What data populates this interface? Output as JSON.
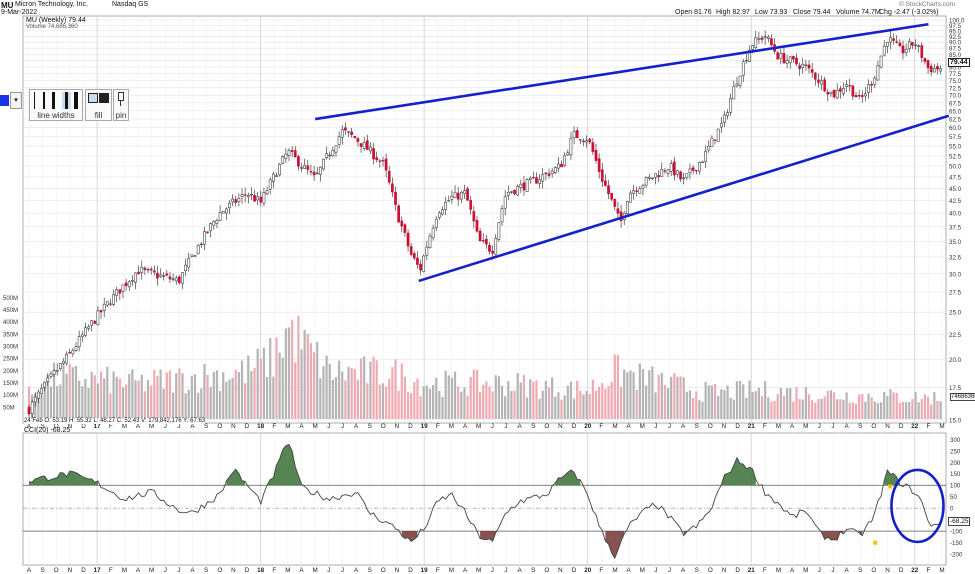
{
  "header": {
    "symbol": "MU",
    "company": "Micron Technology, Inc.",
    "exchange": "Nasdaq GS",
    "date": "9-Mar-2022",
    "open": "Open 81.76",
    "high": "High 82.97",
    "low": "Low 73.93",
    "close": "Close 79.44",
    "volume": "Volume 74.7M",
    "change": "Chg -2.47 (-3.02%)",
    "watermark": "© StockCharts.com",
    "legend_price": "MU (Weekly) 79.44",
    "legend_volume": "Volume 74,686,360",
    "volume_bar_readout": "24 Feb  O: 53.19  H: 55.32  L: 48.27  C: 52.43  V: 179,842,176  Y: 67.63",
    "cci_legend": "CCI(20) -68.25",
    "last_price_label": "79.44",
    "last_volume_label": "74686360",
    "last_cci_label": "-68.25"
  },
  "toolbar": {
    "line_widths_label": "line widths",
    "fill_label": "fill",
    "pin_label": "pin",
    "drop_arrow": "▾"
  },
  "chart_data": [
    {
      "type": "candlestick",
      "title": "MU (Weekly) 79.44",
      "scale": "log",
      "ylim": [
        15.5,
        100
      ],
      "y_ticks": [
        "100.0",
        "97.5",
        "95.0",
        "92.5",
        "90.0",
        "87.5",
        "85.0",
        "82.5",
        "80.0",
        "77.5",
        "75.0",
        "72.5",
        "70.0",
        "67.5",
        "65.0",
        "62.5",
        "60.0",
        "57.5",
        "55.0",
        "52.5",
        "50.0",
        "47.5",
        "45.0",
        "42.5",
        "40.0",
        "37.5",
        "35.0",
        "32.5",
        "30.0",
        "27.5",
        "25.0",
        "22.5",
        "20.0",
        "17.5",
        "15.0"
      ],
      "x_month_labels": [
        "A",
        "S",
        "O",
        "N",
        "D",
        "17",
        "F",
        "M",
        "A",
        "M",
        "J",
        "J",
        "A",
        "S",
        "O",
        "N",
        "D",
        "18",
        "F",
        "M",
        "A",
        "M",
        "J",
        "J",
        "A",
        "S",
        "O",
        "N",
        "D",
        "19",
        "F",
        "M",
        "A",
        "M",
        "J",
        "J",
        "A",
        "S",
        "O",
        "N",
        "D",
        "20",
        "F",
        "M",
        "A",
        "M",
        "J",
        "J",
        "A",
        "S",
        "O",
        "N",
        "D",
        "21",
        "F",
        "M",
        "A",
        "M",
        "J",
        "J",
        "A",
        "S",
        "O",
        "N",
        "D",
        "22",
        "F",
        "M"
      ],
      "close_anchors": [
        {
          "month": 0,
          "close": 15.8
        },
        {
          "month": 3,
          "close": 20.5
        },
        {
          "month": 5,
          "close": 24.5
        },
        {
          "month": 8,
          "close": 30.5
        },
        {
          "month": 11,
          "close": 29.0
        },
        {
          "month": 14,
          "close": 40.0
        },
        {
          "month": 16,
          "close": 44.0
        },
        {
          "month": 17,
          "close": 42.0
        },
        {
          "month": 19,
          "close": 53.5
        },
        {
          "month": 21,
          "close": 47.0
        },
        {
          "month": 23,
          "close": 59.0
        },
        {
          "month": 24,
          "close": 57.0
        },
        {
          "month": 26,
          "close": 50.5
        },
        {
          "month": 27,
          "close": 40.0
        },
        {
          "month": 28,
          "close": 33.0
        },
        {
          "month": 28.7,
          "close": 30.5
        },
        {
          "month": 30,
          "close": 40.5
        },
        {
          "month": 31,
          "close": 43.0
        },
        {
          "month": 32,
          "close": 44.0
        },
        {
          "month": 33,
          "close": 35.0
        },
        {
          "month": 34,
          "close": 33.5
        },
        {
          "month": 35,
          "close": 44.0
        },
        {
          "month": 37,
          "close": 46.5
        },
        {
          "month": 39,
          "close": 50.0
        },
        {
          "month": 40,
          "close": 58.0
        },
        {
          "month": 41,
          "close": 57.0
        },
        {
          "month": 42,
          "close": 47.5
        },
        {
          "month": 43.4,
          "close": 38.0
        },
        {
          "month": 44,
          "close": 44.0
        },
        {
          "month": 46,
          "close": 48.0
        },
        {
          "month": 47,
          "close": 50.0
        },
        {
          "month": 48,
          "close": 46.5
        },
        {
          "month": 49.5,
          "close": 52.0
        },
        {
          "month": 51,
          "close": 62.0
        },
        {
          "month": 52,
          "close": 76.0
        },
        {
          "month": 53,
          "close": 89.0
        },
        {
          "month": 54,
          "close": 93.0
        },
        {
          "month": 55,
          "close": 84.0
        },
        {
          "month": 57,
          "close": 80.0
        },
        {
          "month": 59,
          "close": 70.0
        },
        {
          "month": 60,
          "close": 74.0
        },
        {
          "month": 61,
          "close": 68.0
        },
        {
          "month": 62,
          "close": 76.0
        },
        {
          "month": 63,
          "close": 92.0
        },
        {
          "month": 64,
          "close": 86.0
        },
        {
          "month": 65,
          "close": 90.0
        },
        {
          "month": 66,
          "close": 79.44
        }
      ],
      "trend_lines": [
        {
          "name": "upper",
          "points": [
            {
              "month": 21,
              "price": 62.5
            },
            {
              "month": 66,
              "price": 98.0
            }
          ]
        },
        {
          "name": "lower",
          "points": [
            {
              "month": 28.6,
              "price": 29.0
            },
            {
              "month": 67.5,
              "price": 63.5
            }
          ]
        }
      ],
      "colors": {
        "up": "#ffffff",
        "down": "#cc1133",
        "wick": "#222222",
        "trend": "#1520c8"
      }
    },
    {
      "type": "bar",
      "title": "Volume 74,686,360",
      "y_ticks": [
        "500M",
        "450M",
        "400M",
        "350M",
        "300M",
        "250M",
        "200M",
        "150M",
        "100M",
        "50M"
      ],
      "ylim": [
        0,
        530
      ],
      "unit": "M",
      "volume_anchors": [
        {
          "month": 0,
          "v": 100
        },
        {
          "month": 2,
          "v": 180
        },
        {
          "month": 8,
          "v": 150
        },
        {
          "month": 16,
          "v": 200
        },
        {
          "month": 18,
          "v": 260
        },
        {
          "month": 19,
          "v": 380
        },
        {
          "month": 22,
          "v": 200
        },
        {
          "month": 27,
          "v": 190
        },
        {
          "month": 29,
          "v": 150
        },
        {
          "month": 35,
          "v": 150
        },
        {
          "month": 41,
          "v": 120
        },
        {
          "month": 43,
          "v": 200
        },
        {
          "month": 50,
          "v": 110
        },
        {
          "month": 53,
          "v": 120
        },
        {
          "month": 60,
          "v": 100
        },
        {
          "month": 66,
          "v": 90
        }
      ],
      "colors": {
        "up": "#b4b4b4",
        "down": "#eeaab3"
      }
    },
    {
      "type": "line",
      "title": "CCI(20) -68.25",
      "y_ticks": [
        "300",
        "250",
        "200",
        "150",
        "100",
        "50",
        "0",
        "-50",
        "-100",
        "-150",
        "-200"
      ],
      "ylim": [
        -230,
        310
      ],
      "overbought": 100,
      "oversold": -100,
      "cci_anchors": [
        {
          "month": 0,
          "v": 120
        },
        {
          "month": 1,
          "v": 130
        },
        {
          "month": 3,
          "v": 150
        },
        {
          "month": 5,
          "v": 110
        },
        {
          "month": 7,
          "v": 40
        },
        {
          "month": 9,
          "v": 70
        },
        {
          "month": 11,
          "v": -10
        },
        {
          "month": 12,
          "v": -20
        },
        {
          "month": 14,
          "v": 60
        },
        {
          "month": 15,
          "v": 170
        },
        {
          "month": 16,
          "v": 100
        },
        {
          "month": 17,
          "v": 30
        },
        {
          "month": 18,
          "v": 150
        },
        {
          "month": 19,
          "v": 300
        },
        {
          "month": 20,
          "v": 90
        },
        {
          "month": 22,
          "v": 40
        },
        {
          "month": 24,
          "v": 70
        },
        {
          "month": 25,
          "v": -20
        },
        {
          "month": 27,
          "v": -90
        },
        {
          "month": 28,
          "v": -150
        },
        {
          "month": 29,
          "v": -90
        },
        {
          "month": 30,
          "v": 30
        },
        {
          "month": 31,
          "v": 60
        },
        {
          "month": 32,
          "v": -20
        },
        {
          "month": 33,
          "v": -120
        },
        {
          "month": 34,
          "v": -150
        },
        {
          "month": 35,
          "v": -20
        },
        {
          "month": 36,
          "v": 30
        },
        {
          "month": 38,
          "v": 60
        },
        {
          "month": 39,
          "v": 130
        },
        {
          "month": 40,
          "v": 160
        },
        {
          "month": 41,
          "v": 60
        },
        {
          "month": 42,
          "v": -100
        },
        {
          "month": 43,
          "v": -210
        },
        {
          "month": 44,
          "v": -80
        },
        {
          "month": 45,
          "v": -20
        },
        {
          "month": 46,
          "v": 20
        },
        {
          "month": 47,
          "v": -40
        },
        {
          "month": 48,
          "v": -110
        },
        {
          "month": 49,
          "v": -80
        },
        {
          "month": 50,
          "v": -10
        },
        {
          "month": 51,
          "v": 130
        },
        {
          "month": 52,
          "v": 210
        },
        {
          "month": 53,
          "v": 170
        },
        {
          "month": 54,
          "v": 70
        },
        {
          "month": 55,
          "v": 20
        },
        {
          "month": 56,
          "v": -40
        },
        {
          "month": 57,
          "v": -10
        },
        {
          "month": 58,
          "v": -110
        },
        {
          "month": 59,
          "v": -140
        },
        {
          "month": 60,
          "v": -90
        },
        {
          "month": 61,
          "v": -120
        },
        {
          "month": 62,
          "v": -40
        },
        {
          "month": 63,
          "v": 160
        },
        {
          "month": 64,
          "v": 110
        },
        {
          "month": 65,
          "v": 70
        },
        {
          "month": 65.5,
          "v": 30
        },
        {
          "month": 66,
          "v": -68.25
        }
      ],
      "colors": {
        "line": "#444444",
        "above": "#44773f",
        "below": "#7a3f3f",
        "highlight": "#1520c8"
      }
    }
  ]
}
